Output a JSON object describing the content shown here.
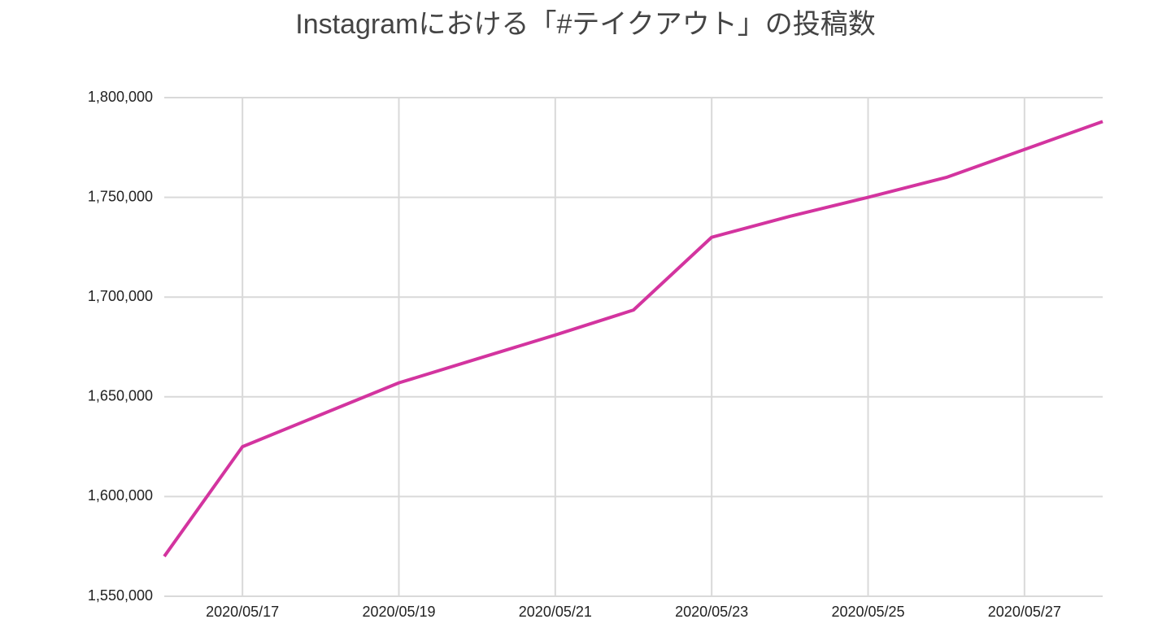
{
  "chart_data": {
    "type": "line",
    "title": "Instagramにおける「#テイクアウト」の投稿数",
    "x": [
      "2020/05/16",
      "2020/05/17",
      "2020/05/18",
      "2020/05/19",
      "2020/05/20",
      "2020/05/21",
      "2020/05/22",
      "2020/05/23",
      "2020/05/24",
      "2020/05/25",
      "2020/05/26",
      "2020/05/27",
      "2020/05/28"
    ],
    "series": [
      {
        "name": "#テイクアウト",
        "color": "#d3349f",
        "values": [
          1570000,
          1625000,
          1641000,
          1657000,
          1669000,
          1681000,
          1693500,
          1730000,
          1740500,
          1750000,
          1760000,
          1774000,
          1788000
        ]
      }
    ],
    "xticks": [
      "2020/05/17",
      "2020/05/19",
      "2020/05/21",
      "2020/05/23",
      "2020/05/25",
      "2020/05/27"
    ],
    "ylim": [
      1550000,
      1800000
    ],
    "yticks": [
      {
        "value": 1550000,
        "label": "1,550,000"
      },
      {
        "value": 1600000,
        "label": "1,600,000"
      },
      {
        "value": 1650000,
        "label": "1,650,000"
      },
      {
        "value": 1700000,
        "label": "1,700,000"
      },
      {
        "value": 1750000,
        "label": "1,750,000"
      },
      {
        "value": 1800000,
        "label": "1,800,000"
      }
    ],
    "grid": true
  }
}
